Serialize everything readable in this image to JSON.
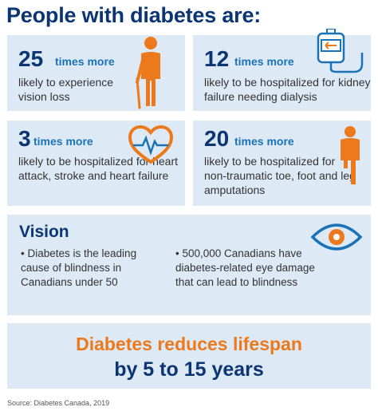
{
  "header": {
    "title": "People with diabetes are:"
  },
  "stats": [
    {
      "number": "25",
      "label": "times more",
      "description": "likely to experience vision loss",
      "icon": "elderly-person-cane-icon"
    },
    {
      "number": "12",
      "label": "times more",
      "description": "likely to be hospitalized for kidney failure needing dialysis",
      "icon": "dialysis-bag-icon"
    },
    {
      "number": "3",
      "label": "times more",
      "description": "likely to be hospitalized for heart attack, stroke and heart failure",
      "icon": "heart-pulse-icon"
    },
    {
      "number": "20",
      "label": "times more",
      "description": "likely to be hospitalized for non-traumatic toe, foot and leg amputations",
      "icon": "amputee-person-icon"
    }
  ],
  "vision": {
    "title": "Vision",
    "bullets": [
      "Diabetes is the leading cause of blindness in Canadians under 50",
      "500,000 Canadians have diabetes-related eye damage that can lead to blindness"
    ],
    "icon": "eye-icon"
  },
  "banner": {
    "line1": "Diabetes reduces lifespan",
    "line2": "by 5 to 15 years"
  },
  "source": "Source: Diabetes Canada, 2019",
  "colors": {
    "navy": "#0c3573",
    "blue": "#1a73b7",
    "orange": "#ec7a1c",
    "card": "#dde9f5"
  }
}
